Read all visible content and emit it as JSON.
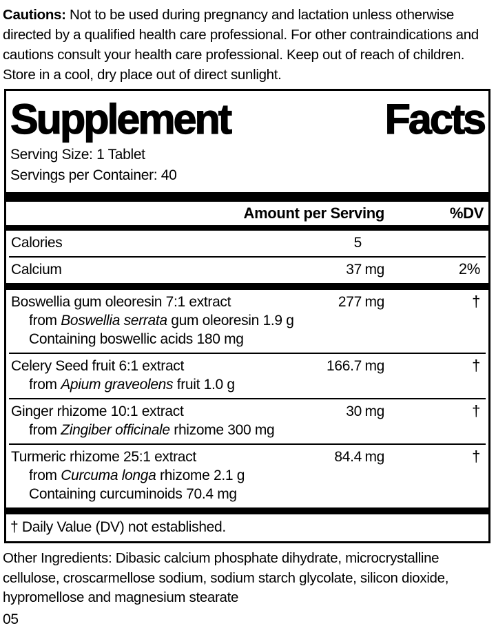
{
  "colors": {
    "ink": "#000000",
    "background": "#ffffff"
  },
  "cautions": {
    "label": "Cautions:",
    "text": " Not to be used during pregnancy and lactation unless otherwise directed by a qualified health care professional. For other contraindications and cautions consult your health care professional. Keep out of reach of children. Store in a cool, dry place out of direct sunlight."
  },
  "panel": {
    "title_left": "Supplement",
    "title_right": "Facts",
    "serving_size": "Serving Size: 1 Tablet",
    "servings_per_container": "Servings per Container: 40",
    "columns": {
      "amount": "Amount per Serving",
      "dv": "%DV"
    },
    "rows": [
      {
        "name": "Calories",
        "amount": "5",
        "unit": "",
        "dv": "",
        "sep": false,
        "thick_bar_before": false,
        "sublines": []
      },
      {
        "name": "Calcium",
        "amount": "37",
        "unit": "mg",
        "dv": "2%",
        "sep": true,
        "thick_bar_before": false,
        "sublines": []
      },
      {
        "name": "Boswellia gum oleoresin 7:1 extract",
        "amount": "277",
        "unit": "mg",
        "dv": "†",
        "sep": false,
        "thick_bar_before": true,
        "sublines": [
          [
            {
              "t": "from ",
              "i": false
            },
            {
              "t": "Boswellia serrata",
              "i": true
            },
            {
              "t": " gum oleoresin 1.9 g",
              "i": false
            }
          ],
          [
            {
              "t": "Containing boswellic acids 180 mg",
              "i": false
            }
          ]
        ]
      },
      {
        "name": "Celery Seed fruit 6:1 extract",
        "amount": "166.7",
        "unit": "mg",
        "dv": "†",
        "sep": true,
        "thick_bar_before": false,
        "sublines": [
          [
            {
              "t": "from ",
              "i": false
            },
            {
              "t": "Apium graveolens",
              "i": true
            },
            {
              "t": " fruit 1.0 g",
              "i": false
            }
          ]
        ]
      },
      {
        "name": "Ginger rhizome 10:1 extract",
        "amount": "30",
        "unit": "mg",
        "dv": "†",
        "sep": true,
        "thick_bar_before": false,
        "sublines": [
          [
            {
              "t": "from ",
              "i": false
            },
            {
              "t": "Zingiber officinale",
              "i": true
            },
            {
              "t": " rhizome 300 mg",
              "i": false
            }
          ]
        ]
      },
      {
        "name": "Turmeric rhizome 25:1 extract",
        "amount": "84.4",
        "unit": "mg",
        "dv": "†",
        "sep": true,
        "thick_bar_before": false,
        "sublines": [
          [
            {
              "t": "from ",
              "i": false
            },
            {
              "t": "Curcuma longa",
              "i": true
            },
            {
              "t": " rhizome 2.1 g",
              "i": false
            }
          ],
          [
            {
              "t": "Containing curcuminoids 70.4 mg",
              "i": false
            }
          ]
        ]
      }
    ],
    "footnote": "† Daily Value (DV) not established."
  },
  "other_ingredients": "Other Ingredients: Dibasic calcium phosphate dihydrate, microcrystalline cellulose, croscarmellose sodium, sodium starch glycolate, silicon dioxide, hypromellose and magnesium stearate",
  "page_number": "05"
}
